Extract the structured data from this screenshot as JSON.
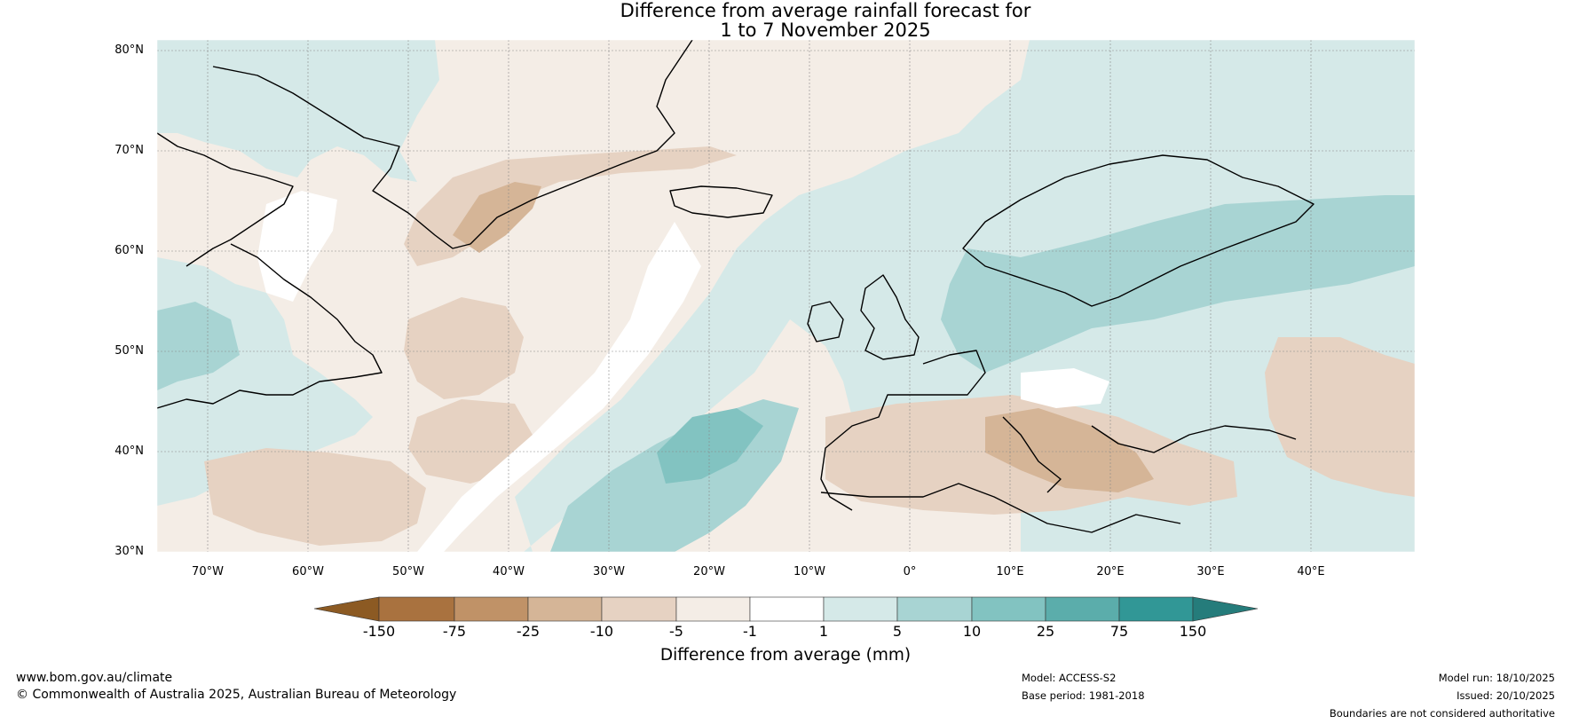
{
  "title": {
    "line1": "Difference from average rainfall forecast for",
    "line2": "1 to 7 November 2025"
  },
  "map": {
    "lat_labels": [
      "80°N",
      "70°N",
      "60°N",
      "50°N",
      "40°N",
      "30°N"
    ],
    "lon_labels": [
      "70°W",
      "60°W",
      "50°W",
      "40°W",
      "30°W",
      "20°W",
      "10°W",
      "0°",
      "10°E",
      "20°E",
      "30°E",
      "40°E"
    ],
    "lat_range": [
      30,
      80
    ],
    "lon_range": [
      -75,
      50
    ],
    "gridlines": true
  },
  "colorbar": {
    "title": "Difference from average (mm)",
    "ticks": [
      "-150",
      "-75",
      "-25",
      "-10",
      "-5",
      "-1",
      "1",
      "5",
      "10",
      "25",
      "75",
      "150"
    ],
    "colors": [
      "#8c5a23",
      "#a9723f",
      "#c09267",
      "#d5b597",
      "#e6d2c2",
      "#f4ede6",
      "#ffffff",
      "#d5e9e8",
      "#a8d4d3",
      "#82c3c1",
      "#5badab",
      "#319796",
      "#257c7b"
    ]
  },
  "footer": {
    "website": "www.bom.gov.au/climate",
    "copyright": "© Commonwealth of Australia 2025, Australian Bureau of Meteorology",
    "model": "Model: ACCESS-S2",
    "base_period": "Base period: 1981-2018",
    "model_run": "Model run: 18/10/2025",
    "issued": "Issued: 20/10/2025",
    "boundaries": "Boundaries are not considered authoritative"
  }
}
